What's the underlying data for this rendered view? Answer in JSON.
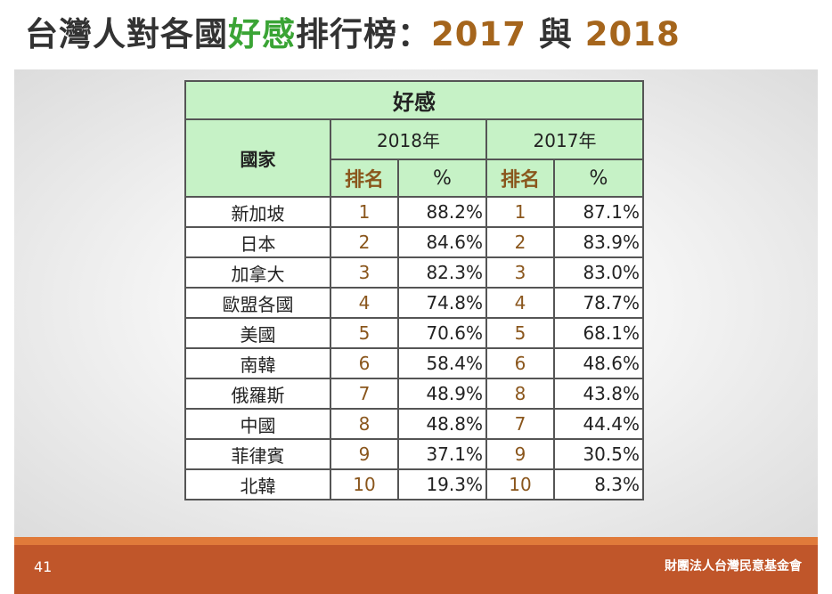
{
  "header": {
    "title": [
      {
        "text": "台灣人對各國",
        "tone": "dark"
      },
      {
        "text": "好感",
        "tone": "green"
      },
      {
        "text": "排行榜：",
        "tone": "dark"
      },
      {
        "text": "2017",
        "tone": "brown"
      },
      {
        "text": " 與 ",
        "tone": "dark"
      },
      {
        "text": "2018",
        "tone": "brown"
      }
    ]
  },
  "table": {
    "caption": "好感",
    "country_header": "國家",
    "years": [
      "2018年",
      "2017年"
    ],
    "sub_headers": [
      "排名",
      "%",
      "排名",
      "%"
    ],
    "rows": [
      [
        "新加坡",
        "1",
        "88.2%",
        "1",
        "87.1%"
      ],
      [
        "日本",
        "2",
        "84.6%",
        "2",
        "83.9%"
      ],
      [
        "加拿大",
        "3",
        "82.3%",
        "3",
        "83.0%"
      ],
      [
        "歐盟各國",
        "4",
        "74.8%",
        "4",
        "78.7%"
      ],
      [
        "美國",
        "5",
        "70.6%",
        "5",
        "68.1%"
      ],
      [
        "南韓",
        "6",
        "58.4%",
        "6",
        "48.6%"
      ],
      [
        "俄羅斯",
        "7",
        "48.9%",
        "8",
        "43.8%"
      ],
      [
        "中國",
        "8",
        "48.8%",
        "7",
        "44.4%"
      ],
      [
        "菲律賓",
        "9",
        "37.1%",
        "9",
        "30.5%"
      ],
      [
        "北韓",
        "10",
        "19.3%",
        "10",
        "8.3%"
      ]
    ]
  },
  "footer": {
    "page": "41",
    "org": "財團法人台灣民意基金會"
  }
}
